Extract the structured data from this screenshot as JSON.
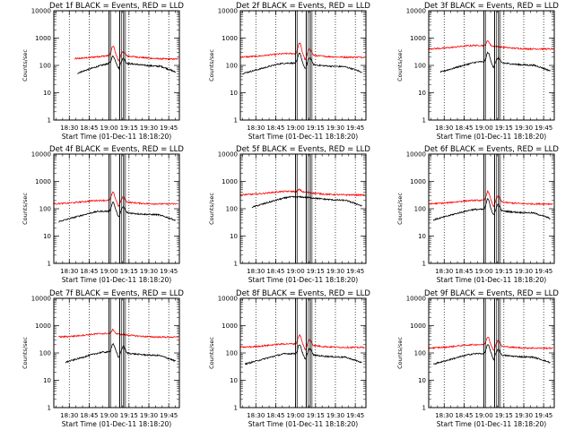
{
  "chart_data": [
    {
      "type": "line",
      "title": "Det 1f BLACK = Events, RED = LLD",
      "xlabel": "Start Time (01-Dec-11 18:18:20)",
      "ylabel": "Counts/sec",
      "yscale": "log",
      "ylim": [
        1,
        10000
      ],
      "x_ticks": [
        "18:30",
        "18:45",
        "19:00",
        "19:15",
        "19:30",
        "19:45"
      ],
      "y_ticks": [
        "1",
        "10",
        "100",
        "1000",
        "10000"
      ],
      "markers": [
        "19:00",
        "19:08",
        "19:11"
      ],
      "series": [
        {
          "color": "#ff0000",
          "start": "18:34",
          "end": "19:52",
          "level": 170,
          "peaks": [
            [
              19.05,
              2.2
            ],
            [
              19.18,
              1.4
            ]
          ]
        },
        {
          "color": "#000000",
          "start": "18:36",
          "end": "19:50",
          "level": 90,
          "peaks": [
            [
              19.05,
              1.8
            ],
            [
              19.18,
              1.5
            ]
          ]
        }
      ]
    },
    {
      "type": "line",
      "title": "Det 2f BLACK = Events, RED = LLD",
      "xlabel": "Start Time (01-Dec-11 18:18:20)",
      "ylabel": "Counts/sec",
      "yscale": "log",
      "ylim": [
        1,
        10000
      ],
      "x_ticks": [
        "18:30",
        "18:45",
        "19:00",
        "19:15",
        "19:30",
        "19:45"
      ],
      "y_ticks": [
        "1",
        "10",
        "100",
        "1000",
        "10000"
      ],
      "markers": [
        "19:00",
        "19:08",
        "19:11"
      ],
      "series": [
        {
          "color": "#ff0000",
          "start": "18:18",
          "end": "19:52",
          "level": 200,
          "peaks": [
            [
              19.05,
              2.5
            ],
            [
              19.18,
              1.7
            ]
          ]
        },
        {
          "color": "#000000",
          "start": "18:20",
          "end": "19:50",
          "level": 90,
          "peaks": [
            [
              19.05,
              2.4
            ],
            [
              19.18,
              1.8
            ]
          ]
        }
      ]
    },
    {
      "type": "line",
      "title": "Det 3f BLACK = Events, RED = LLD",
      "xlabel": "Start Time (01-Dec-11 18:18:20)",
      "ylabel": "Counts/sec",
      "yscale": "log",
      "ylim": [
        1,
        10000
      ],
      "x_ticks": [
        "18:30",
        "18:45",
        "19:00",
        "19:15",
        "19:30",
        "19:45"
      ],
      "y_ticks": [
        "1",
        "10",
        "100",
        "1000",
        "10000"
      ],
      "markers": [
        "19:00",
        "19:08",
        "19:11"
      ],
      "series": [
        {
          "color": "#ff0000",
          "start": "18:18",
          "end": "19:52",
          "level": 400,
          "peaks": [
            [
              19.05,
              1.5
            ]
          ]
        },
        {
          "color": "#000000",
          "start": "18:27",
          "end": "19:50",
          "level": 100,
          "peaks": [
            [
              19.05,
              2.2
            ],
            [
              19.18,
              1.5
            ]
          ]
        }
      ]
    },
    {
      "type": "line",
      "title": "Det 4f BLACK = Events, RED = LLD",
      "xlabel": "Start Time (01-Dec-11 18:18:20)",
      "ylabel": "Counts/sec",
      "yscale": "log",
      "ylim": [
        1,
        10000
      ],
      "x_ticks": [
        "18:30",
        "18:45",
        "19:00",
        "19:15",
        "19:30",
        "19:45"
      ],
      "y_ticks": [
        "1",
        "10",
        "100",
        "1000",
        "10000"
      ],
      "markers": [
        "19:00",
        "19:08",
        "19:11"
      ],
      "series": [
        {
          "color": "#ff0000",
          "start": "18:18",
          "end": "19:52",
          "level": 150,
          "peaks": [
            [
              19.05,
              2.0
            ],
            [
              19.18,
              1.5
            ]
          ]
        },
        {
          "color": "#000000",
          "start": "18:22",
          "end": "19:50",
          "level": 60,
          "peaks": [
            [
              19.05,
              2.2
            ],
            [
              19.18,
              1.6
            ]
          ]
        }
      ]
    },
    {
      "type": "line",
      "title": "Det 5f BLACK = Events, RED = LLD",
      "xlabel": "Start Time (01-Dec-11 18:18:20)",
      "ylabel": "Counts/sec",
      "yscale": "log",
      "ylim": [
        1,
        10000
      ],
      "x_ticks": [
        "18:30",
        "18:45",
        "19:00",
        "19:15",
        "19:30",
        "19:45"
      ],
      "y_ticks": [
        "1",
        "10",
        "100",
        "1000",
        "10000"
      ],
      "markers": [
        "19:00",
        "19:08",
        "19:11"
      ],
      "series": [
        {
          "color": "#ff0000",
          "start": "18:18",
          "end": "19:52",
          "level": 320,
          "peaks": [
            [
              19.05,
              1.2
            ]
          ]
        },
        {
          "color": "#000000",
          "start": "18:27",
          "end": "19:50",
          "level": 200,
          "peaks": []
        }
      ]
    },
    {
      "type": "line",
      "title": "Det 6f BLACK = Events, RED = LLD",
      "xlabel": "Start Time (01-Dec-11 18:18:20)",
      "ylabel": "Counts/sec",
      "yscale": "log",
      "ylim": [
        1,
        10000
      ],
      "x_ticks": [
        "18:30",
        "18:45",
        "19:00",
        "19:15",
        "19:30",
        "19:45"
      ],
      "y_ticks": [
        "1",
        "10",
        "100",
        "1000",
        "10000"
      ],
      "markers": [
        "19:00",
        "19:08",
        "19:11"
      ],
      "series": [
        {
          "color": "#ff0000",
          "start": "18:18",
          "end": "19:52",
          "level": 150,
          "peaks": [
            [
              19.05,
              2.2
            ],
            [
              19.18,
              1.6
            ]
          ]
        },
        {
          "color": "#000000",
          "start": "18:22",
          "end": "19:50",
          "level": 70,
          "peaks": [
            [
              19.05,
              2.5
            ],
            [
              19.18,
              1.7
            ]
          ]
        }
      ]
    },
    {
      "type": "line",
      "title": "Det 7f BLACK = Events, RED = LLD",
      "xlabel": "Start Time (01-Dec-11 18:18:20)",
      "ylabel": "Counts/sec",
      "yscale": "log",
      "ylim": [
        1,
        10000
      ],
      "x_ticks": [
        "18:30",
        "18:45",
        "19:00",
        "19:15",
        "19:30",
        "19:45"
      ],
      "y_ticks": [
        "1",
        "10",
        "100",
        "1000",
        "10000"
      ],
      "markers": [
        "19:00",
        "19:08",
        "19:11"
      ],
      "series": [
        {
          "color": "#ff0000",
          "start": "18:22",
          "end": "19:52",
          "level": 380,
          "peaks": [
            [
              19.05,
              1.4
            ]
          ]
        },
        {
          "color": "#000000",
          "start": "18:27",
          "end": "19:50",
          "level": 80,
          "peaks": [
            [
              19.05,
              2.0
            ],
            [
              19.18,
              1.7
            ]
          ]
        }
      ]
    },
    {
      "type": "line",
      "title": "Det 8f BLACK = Events, RED = LLD",
      "xlabel": "Start Time (01-Dec-11 18:18:20)",
      "ylabel": "Counts/sec",
      "yscale": "log",
      "ylim": [
        1,
        10000
      ],
      "x_ticks": [
        "18:30",
        "18:45",
        "19:00",
        "19:15",
        "19:30",
        "19:45"
      ],
      "y_ticks": [
        "1",
        "10",
        "100",
        "1000",
        "10000"
      ],
      "markers": [
        "19:00",
        "19:08",
        "19:11"
      ],
      "series": [
        {
          "color": "#ff0000",
          "start": "18:18",
          "end": "19:52",
          "level": 160,
          "peaks": [
            [
              19.05,
              2.2
            ],
            [
              19.18,
              1.6
            ]
          ]
        },
        {
          "color": "#000000",
          "start": "18:22",
          "end": "19:50",
          "level": 70,
          "peaks": [
            [
              19.05,
              2.2
            ],
            [
              19.18,
              1.7
            ]
          ]
        }
      ]
    },
    {
      "type": "line",
      "title": "Det 9f BLACK = Events, RED = LLD",
      "xlabel": "Start Time (01-Dec-11 18:18:20)",
      "ylabel": "Counts/sec",
      "yscale": "log",
      "ylim": [
        1,
        10000
      ],
      "x_ticks": [
        "18:30",
        "18:45",
        "19:00",
        "19:15",
        "19:30",
        "19:45"
      ],
      "y_ticks": [
        "1",
        "10",
        "100",
        "1000",
        "10000"
      ],
      "markers": [
        "19:00",
        "19:08",
        "19:11"
      ],
      "series": [
        {
          "color": "#ff0000",
          "start": "18:18",
          "end": "19:52",
          "level": 150,
          "peaks": [
            [
              19.05,
              2.0
            ],
            [
              19.18,
              1.6
            ]
          ]
        },
        {
          "color": "#000000",
          "start": "18:22",
          "end": "19:50",
          "level": 70,
          "peaks": [
            [
              19.05,
              2.2
            ],
            [
              19.18,
              1.6
            ]
          ]
        }
      ]
    }
  ]
}
